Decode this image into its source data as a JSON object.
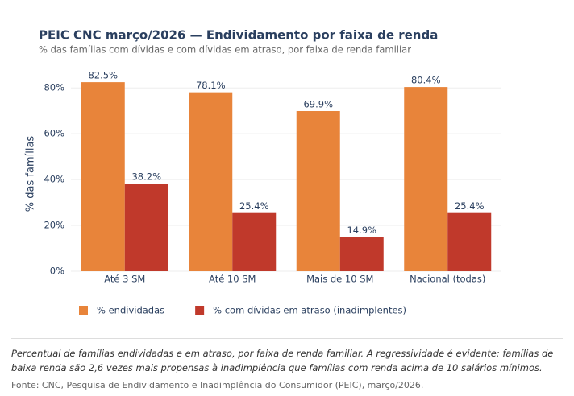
{
  "chart_data": {
    "type": "bar",
    "title": "PEIC CNC março/2026 — Endividamento por faixa de renda",
    "subtitle": "% das famílias com dívidas e com dívidas em atraso, por faixa de renda familiar",
    "y_label": "% das famílias",
    "categories": [
      "Até 3 SM",
      "Até 10 SM",
      "Mais de 10 SM",
      "Nacional (todas)"
    ],
    "series": [
      {
        "name": "% endividadas",
        "color": "#e8843a",
        "values": [
          82.5,
          78.1,
          69.9,
          80.4
        ],
        "value_labels": [
          "82.5%",
          "78.1%",
          "69.9%",
          "80.4%"
        ]
      },
      {
        "name": "% com dívidas em atraso (inadimplentes)",
        "color": "#c0392b",
        "values": [
          38.2,
          25.4,
          14.9,
          25.4
        ],
        "value_labels": [
          "38.2%",
          "25.4%",
          "14.9%",
          "25.4%"
        ]
      }
    ],
    "ylim": [
      0,
      85
    ],
    "yticks": [
      {
        "value": 0,
        "label": "0%"
      },
      {
        "value": 20,
        "label": "20%"
      },
      {
        "value": 40,
        "label": "40%"
      },
      {
        "value": 60,
        "label": "60%"
      },
      {
        "value": 80,
        "label": "80%"
      }
    ],
    "grid": true
  },
  "caption": "Percentual de famílias endividadas e em atraso, por faixa de renda familiar. A regressividade é evidente: famílias de baixa renda são 2,6 vezes mais propensas à inadimplência que famílias com renda acima de 10 salários mínimos.",
  "source": "Fonte: CNC, Pesquisa de Endividamento e Inadimplência do Consumidor (PEIC), março/2026."
}
